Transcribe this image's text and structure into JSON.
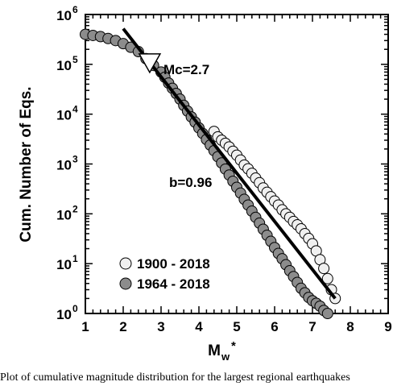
{
  "chart_data": {
    "type": "scatter",
    "xlabel": "M",
    "xlabel_sub": "w",
    "xlabel_sup": "*",
    "ylabel": "Cum. Number of Eqs.",
    "xlim": [
      1,
      9
    ],
    "ylim_log10": [
      0,
      6
    ],
    "y_scale": "log",
    "x_ticks": [
      "1",
      "2",
      "3",
      "4",
      "5",
      "6",
      "7",
      "8",
      "9"
    ],
    "y_ticks": [
      {
        "base": "10",
        "exp": "0"
      },
      {
        "base": "10",
        "exp": "1"
      },
      {
        "base": "10",
        "exp": "2"
      },
      {
        "base": "10",
        "exp": "3"
      },
      {
        "base": "10",
        "exp": "4"
      },
      {
        "base": "10",
        "exp": "5"
      },
      {
        "base": "10",
        "exp": "6"
      }
    ],
    "series": [
      {
        "name": "1900 - 2018",
        "color": "#f0f0f0",
        "x": [
          4.4,
          4.5,
          4.6,
          4.7,
          4.8,
          4.9,
          5.0,
          5.1,
          5.2,
          5.3,
          5.4,
          5.5,
          5.6,
          5.7,
          5.8,
          5.9,
          6.0,
          6.1,
          6.2,
          6.3,
          6.4,
          6.5,
          6.6,
          6.7,
          6.8,
          6.9,
          7.0,
          7.1,
          7.2,
          7.3,
          7.4,
          7.5,
          7.6
        ],
        "y": [
          4500,
          3500,
          3000,
          2600,
          2200,
          1800,
          1500,
          1200,
          950,
          800,
          650,
          520,
          420,
          330,
          270,
          220,
          180,
          150,
          120,
          100,
          85,
          70,
          60,
          50,
          40,
          32,
          25,
          18,
          12,
          8,
          5,
          3,
          2
        ]
      },
      {
        "name": "1964 - 2018",
        "color": "#8c8c8c",
        "x": [
          1.0,
          1.2,
          1.4,
          1.6,
          1.8,
          2.0,
          2.2,
          2.4,
          2.6,
          2.8,
          3.0,
          3.1,
          3.2,
          3.3,
          3.4,
          3.5,
          3.6,
          3.7,
          3.8,
          3.9,
          4.0,
          4.1,
          4.2,
          4.3,
          4.4,
          4.5,
          4.6,
          4.7,
          4.8,
          4.9,
          5.0,
          5.1,
          5.2,
          5.3,
          5.4,
          5.5,
          5.6,
          5.7,
          5.8,
          5.9,
          6.0,
          6.1,
          6.2,
          6.3,
          6.4,
          6.5,
          6.6,
          6.7,
          6.8,
          6.9,
          7.0,
          7.1,
          7.2,
          7.3,
          7.4
        ],
        "y": [
          400000,
          380000,
          360000,
          330000,
          300000,
          260000,
          220000,
          180000,
          130000,
          95000,
          70000,
          55000,
          42000,
          33000,
          26000,
          20000,
          15000,
          11500,
          8800,
          6900,
          5300,
          4100,
          3100,
          2400,
          1850,
          1400,
          1050,
          790,
          600,
          450,
          340,
          260,
          195,
          150,
          113,
          85,
          65,
          49,
          37,
          28,
          21,
          16,
          12.5,
          9.5,
          7.2,
          5.5,
          4.2,
          3.2,
          2.6,
          2.1,
          1.8,
          1.6,
          1.4,
          1.15,
          1.0
        ]
      }
    ],
    "fit_line": {
      "x": [
        2.0,
        7.6
      ],
      "y": [
        520000,
        2.0
      ]
    },
    "annotations": {
      "mc_label": "Mc=2.7",
      "mc_x": 2.7,
      "mc_y": 100000,
      "b_label": "b=0.96"
    },
    "legend_placement": "bottom-left",
    "grid": false
  },
  "caption": "Plot of cumulative magnitude distribution for the largest regional earthquakes"
}
